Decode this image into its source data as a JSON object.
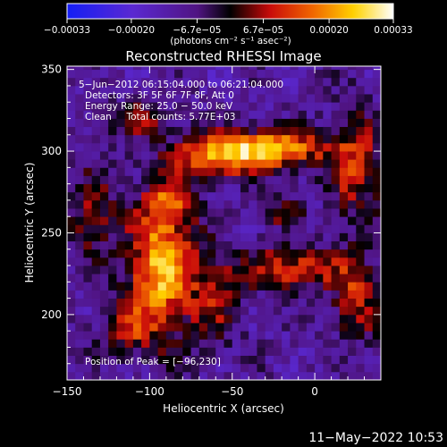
{
  "chart_data": {
    "type": "heatmap",
    "title": "Reconstructed RHESSI Image",
    "xlabel": "Heliocentric X (arcsec)",
    "ylabel": "Heliocentric Y (arcsec)",
    "xlim": [
      -150,
      40
    ],
    "ylim": [
      160,
      352
    ],
    "x_ticks": [
      -150,
      -100,
      -50,
      0
    ],
    "x_tick_labels": [
      "−150",
      "−100",
      "−50",
      "0"
    ],
    "y_ticks": [
      200,
      250,
      300,
      350
    ],
    "y_tick_labels": [
      "200",
      "250",
      "300",
      "350"
    ],
    "colorbar": {
      "range": [
        -0.00033,
        0.00033
      ],
      "tick_labels": [
        "−0.00033",
        "−0.00020",
        "−6.7e−05",
        "6.7e−05",
        "0.00020",
        "0.00033"
      ],
      "unit": "(photons cm⁻² s⁻¹ asec⁻²)"
    },
    "annotations": [
      "5−Jun−2012 06:15:04.000 to 06:21:04.000",
      "Detectors: 3F 5F 6F 7F 8F, Att 0",
      "Energy Range: 25.0 − 50.0 keV",
      "Clean     Total counts: 5.77E+03"
    ],
    "peak_label": "Position of Peak = [−96,230]",
    "peak": [
      -96,
      230
    ],
    "sources": [
      {
        "x": -93,
        "y": 228,
        "sx": 14,
        "sy": 28,
        "amp": 1.0
      },
      {
        "x": -88,
        "y": 270,
        "sx": 10,
        "sy": 10,
        "amp": 0.55
      },
      {
        "x": -55,
        "y": 298,
        "sx": 22,
        "sy": 9,
        "amp": 0.9
      },
      {
        "x": -20,
        "y": 302,
        "sx": 20,
        "sy": 8,
        "amp": 0.75
      },
      {
        "x": 25,
        "y": 292,
        "sx": 12,
        "sy": 22,
        "amp": 0.6
      },
      {
        "x": -15,
        "y": 228,
        "sx": 22,
        "sy": 9,
        "amp": 0.65
      },
      {
        "x": 25,
        "y": 210,
        "sx": 10,
        "sy": 18,
        "amp": 0.55
      },
      {
        "x": -60,
        "y": 210,
        "sx": 10,
        "sy": 20,
        "amp": 0.45
      },
      {
        "x": -135,
        "y": 262,
        "sx": 10,
        "sy": 18,
        "amp": 0.45
      },
      {
        "x": -105,
        "y": 320,
        "sx": 14,
        "sy": 8,
        "amp": 0.4
      },
      {
        "x": -115,
        "y": 190,
        "sx": 12,
        "sy": 10,
        "amp": 0.45
      },
      {
        "x": -20,
        "y": 262,
        "sx": 8,
        "sy": 6,
        "amp": 0.4
      }
    ]
  },
  "footer": {
    "timestamp": "11−May−2022 10:53"
  }
}
